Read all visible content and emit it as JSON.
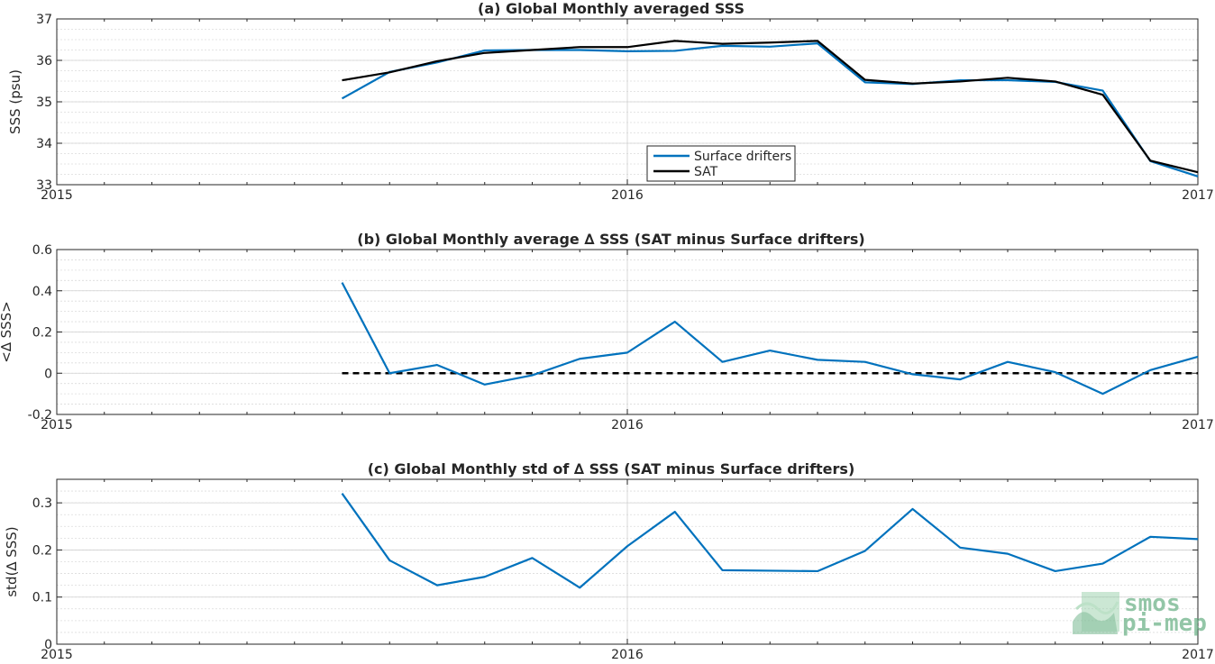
{
  "chart_data": [
    {
      "type": "line",
      "title": "(a) Global Monthly averaged SSS",
      "ylabel": "SSS (psu)",
      "xlabel": "",
      "xlim": [
        "2015-01",
        "2017-01"
      ],
      "ylim": [
        33,
        37
      ],
      "yticks": [
        "33",
        "34",
        "35",
        "36",
        "37"
      ],
      "xticks": [
        "2015",
        "2016",
        "2017"
      ],
      "grid": true,
      "legend": "bottom-center",
      "x": [
        "2015-07",
        "2015-08",
        "2015-09",
        "2015-10",
        "2015-11",
        "2015-12",
        "2016-01",
        "2016-02",
        "2016-03",
        "2016-04",
        "2016-05",
        "2016-06",
        "2016-07",
        "2016-08",
        "2016-09",
        "2016-10",
        "2016-11",
        "2016-12",
        "2017-01"
      ],
      "series": [
        {
          "name": "Surface drifters",
          "color": "#0072bd",
          "values": [
            35.08,
            35.72,
            35.95,
            36.24,
            36.25,
            36.25,
            36.22,
            36.23,
            36.35,
            36.33,
            36.41,
            35.47,
            35.43,
            35.52,
            35.52,
            35.48,
            35.27,
            33.57,
            33.2
          ]
        },
        {
          "name": "SAT",
          "color": "#000000",
          "values": [
            35.52,
            35.71,
            35.98,
            36.18,
            36.25,
            36.32,
            36.32,
            36.47,
            36.4,
            36.43,
            36.47,
            35.53,
            35.44,
            35.49,
            35.58,
            35.49,
            35.17,
            33.58,
            33.3
          ]
        }
      ]
    },
    {
      "type": "line",
      "title": "(b) Global Monthly average ∆ SSS (SAT minus Surface drifters)",
      "ylabel": "<∆ SSS>",
      "xlabel": "",
      "xlim": [
        "2015-01",
        "2017-01"
      ],
      "ylim": [
        -0.2,
        0.6
      ],
      "yticks": [
        "-0.2",
        "0",
        "0.2",
        "0.4",
        "0.6"
      ],
      "xticks": [
        "2015",
        "2016",
        "2017"
      ],
      "grid": true,
      "zero_line": {
        "value": 0,
        "style": "dashed",
        "color": "#000000"
      },
      "x": [
        "2015-07",
        "2015-08",
        "2015-09",
        "2015-10",
        "2015-11",
        "2015-12",
        "2016-01",
        "2016-02",
        "2016-03",
        "2016-04",
        "2016-05",
        "2016-06",
        "2016-07",
        "2016-08",
        "2016-09",
        "2016-10",
        "2016-11",
        "2016-12",
        "2017-01"
      ],
      "series": [
        {
          "color": "#0072bd",
          "values": [
            0.44,
            0.0,
            0.04,
            -0.055,
            -0.01,
            0.07,
            0.1,
            0.25,
            0.055,
            0.11,
            0.065,
            0.055,
            -0.005,
            -0.03,
            0.055,
            0.005,
            -0.1,
            0.015,
            0.08
          ]
        }
      ]
    },
    {
      "type": "line",
      "title": "(c) Global Monthly std of ∆ SSS (SAT minus Surface drifters)",
      "ylabel": "std(∆ SSS)",
      "xlabel": "",
      "xlim": [
        "2015-01",
        "2017-01"
      ],
      "ylim": [
        0,
        0.35
      ],
      "yticks": [
        "0",
        "0.1",
        "0.2",
        "0.3"
      ],
      "xticks": [
        "2015",
        "2016",
        "2017"
      ],
      "grid": true,
      "x": [
        "2015-07",
        "2015-08",
        "2015-09",
        "2015-10",
        "2015-11",
        "2015-12",
        "2016-01",
        "2016-02",
        "2016-03",
        "2016-04",
        "2016-05",
        "2016-06",
        "2016-07",
        "2016-08",
        "2016-09",
        "2016-10",
        "2016-11",
        "2016-12",
        "2017-01"
      ],
      "series": [
        {
          "color": "#0072bd",
          "values": [
            0.32,
            0.178,
            0.125,
            0.143,
            0.183,
            0.12,
            0.208,
            0.281,
            0.157,
            0.156,
            0.155,
            0.198,
            0.287,
            0.205,
            0.192,
            0.155,
            0.171,
            0.228,
            0.223
          ]
        }
      ]
    }
  ],
  "logo": {
    "line1": "smos",
    "line2": "pi-mep"
  }
}
